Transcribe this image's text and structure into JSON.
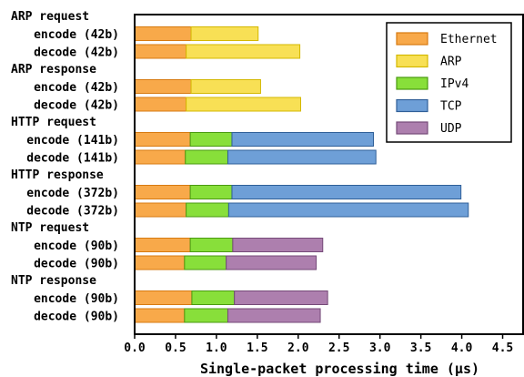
{
  "chart_data": {
    "type": "bar",
    "orientation": "horizontal",
    "stacked": true,
    "xlabel": "Single-packet processing time (μs)",
    "ylabel": "",
    "xlim": [
      0,
      4.75
    ],
    "xticks": [
      "0.0",
      "0.5",
      "1.0",
      "1.5",
      "2.0",
      "2.5",
      "3.0",
      "3.5",
      "4.0",
      "4.5"
    ],
    "grid": false,
    "legend_position": "top-right",
    "groups": [
      {
        "label": "ARP request",
        "bars": [
          {
            "label": "encode (42b)",
            "segments": {
              "Ethernet": 0.69,
              "ARP": 0.82
            }
          },
          {
            "label": "decode (42b)",
            "segments": {
              "Ethernet": 0.63,
              "ARP": 1.39
            }
          }
        ]
      },
      {
        "label": "ARP response",
        "bars": [
          {
            "label": "encode (42b)",
            "segments": {
              "Ethernet": 0.69,
              "ARP": 0.85
            }
          },
          {
            "label": "decode (42b)",
            "segments": {
              "Ethernet": 0.63,
              "ARP": 1.4
            }
          }
        ]
      },
      {
        "label": "HTTP request",
        "bars": [
          {
            "label": "encode (141b)",
            "segments": {
              "Ethernet": 0.68,
              "IPv4": 0.51,
              "TCP": 1.73
            }
          },
          {
            "label": "decode (141b)",
            "segments": {
              "Ethernet": 0.62,
              "IPv4": 0.52,
              "TCP": 1.81
            }
          }
        ]
      },
      {
        "label": "HTTP response",
        "bars": [
          {
            "label": "encode (372b)",
            "segments": {
              "Ethernet": 0.68,
              "IPv4": 0.51,
              "TCP": 2.8
            }
          },
          {
            "label": "decode (372b)",
            "segments": {
              "Ethernet": 0.63,
              "IPv4": 0.52,
              "TCP": 2.93
            }
          }
        ]
      },
      {
        "label": "NTP request",
        "bars": [
          {
            "label": "encode (90b)",
            "segments": {
              "Ethernet": 0.68,
              "IPv4": 0.52,
              "UDP": 1.1
            }
          },
          {
            "label": "decode (90b)",
            "segments": {
              "Ethernet": 0.61,
              "IPv4": 0.51,
              "UDP": 1.1
            }
          }
        ]
      },
      {
        "label": "NTP response",
        "bars": [
          {
            "label": "encode (90b)",
            "segments": {
              "Ethernet": 0.7,
              "IPv4": 0.52,
              "UDP": 1.14
            }
          },
          {
            "label": "decode (90b)",
            "segments": {
              "Ethernet": 0.61,
              "IPv4": 0.53,
              "UDP": 1.13
            }
          }
        ]
      }
    ],
    "series": [
      {
        "name": "Ethernet",
        "color": "#f8a94a",
        "edge": "#d77a10"
      },
      {
        "name": "ARP",
        "color": "#f8e055",
        "edge": "#d4b800"
      },
      {
        "name": "IPv4",
        "color": "#88df3a",
        "edge": "#4a9a10"
      },
      {
        "name": "TCP",
        "color": "#6e9fd7",
        "edge": "#2f5f98"
      },
      {
        "name": "UDP",
        "color": "#ad7fae",
        "edge": "#754a78"
      }
    ]
  }
}
